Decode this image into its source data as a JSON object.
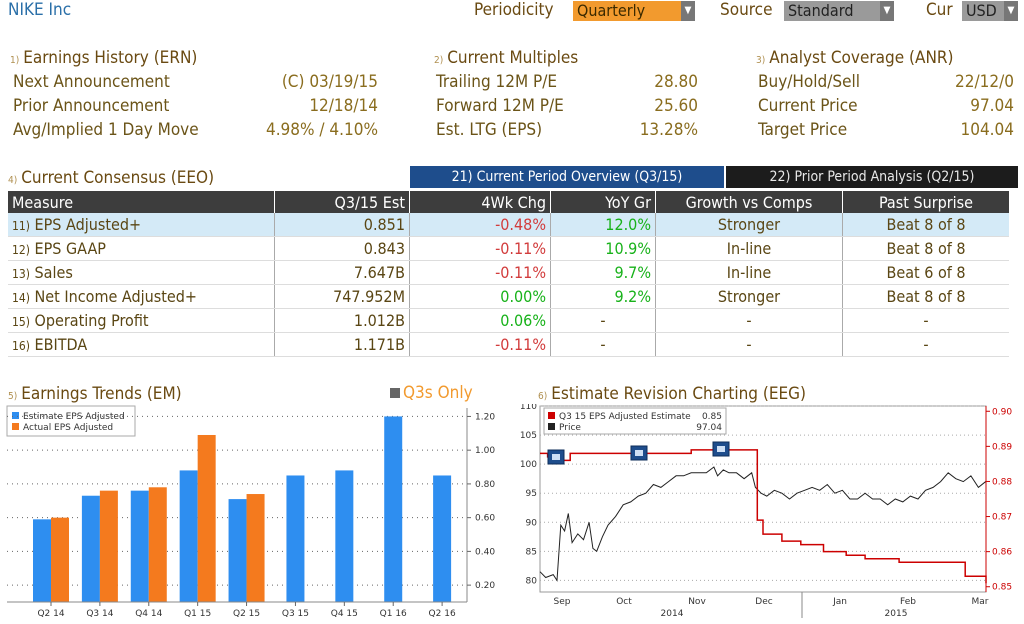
{
  "header": {
    "title": "NIKE Inc",
    "periodicity_label": "Periodicity",
    "periodicity_value": "Quarterly",
    "source_label": "Source",
    "source_value": "Standard",
    "cur_label": "Cur",
    "cur_value": "USD"
  },
  "earnings_history": {
    "num": "1)",
    "title": "Earnings History (ERN)",
    "rows": [
      {
        "label": "Next Announcement",
        "value": "(C)  03/19/15"
      },
      {
        "label": "Prior Announcement",
        "value": "12/18/14"
      },
      {
        "label": "Avg/Implied 1 Day Move",
        "value": "4.98% / 4.10%"
      }
    ]
  },
  "current_multiples": {
    "num": "2)",
    "title": "Current Multiples",
    "rows": [
      {
        "label": "Trailing 12M P/E",
        "value": "28.80"
      },
      {
        "label": "Forward 12M P/E",
        "value": "25.60"
      },
      {
        "label": "Est. LTG (EPS)",
        "value": "13.28%"
      }
    ]
  },
  "analyst_coverage": {
    "num": "3)",
    "title": "Analyst Coverage (ANR)",
    "rows": [
      {
        "label": "Buy/Hold/Sell",
        "value": "22/12/0"
      },
      {
        "label": "Current Price",
        "value": "97.04"
      },
      {
        "label": "Target Price",
        "value": "104.04"
      }
    ]
  },
  "consensus": {
    "num": "4)",
    "title": "Current Consensus (EEO)",
    "tab_current": "21) Current Period Overview (Q3/15)",
    "tab_prior": "22) Prior Period Analysis (Q2/15)",
    "columns": [
      "Measure",
      "Q3/15 Est",
      "4Wk Chg",
      "YoY Gr",
      "Growth vs Comps",
      "Past Surprise"
    ],
    "rows": [
      {
        "num": "11)",
        "measure": "EPS Adjusted+",
        "est": "0.851",
        "chg": "-0.48%",
        "yoy": "12.0%",
        "growth": "Stronger",
        "surprise": "Beat 8 of 8"
      },
      {
        "num": "12)",
        "measure": "EPS GAAP",
        "est": "0.843",
        "chg": "-0.11%",
        "yoy": "10.9%",
        "growth": "In-line",
        "surprise": "Beat 8 of 8"
      },
      {
        "num": "13)",
        "measure": "Sales",
        "est": "7.647B",
        "chg": "-0.11%",
        "yoy": "9.7%",
        "growth": "In-line",
        "surprise": "Beat 6 of 8"
      },
      {
        "num": "14)",
        "measure": "Net Income Adjusted+",
        "est": "747.952M",
        "chg": "0.00%",
        "yoy": "9.2%",
        "growth": "Stronger",
        "surprise": "Beat 8 of 8"
      },
      {
        "num": "15)",
        "measure": "Operating Profit",
        "est": "1.012B",
        "chg": "0.06%",
        "yoy": "-",
        "growth": "-",
        "surprise": "-"
      },
      {
        "num": "16)",
        "measure": "EBITDA",
        "est": "1.171B",
        "chg": "-0.11%",
        "yoy": "-",
        "growth": "-",
        "surprise": "-"
      }
    ]
  },
  "trends": {
    "num": "5)",
    "title": "Earnings Trends (EM)",
    "q3_only": "Q3s Only"
  },
  "revision": {
    "num": "6)",
    "title": "Estimate Revision Charting (EEG)"
  },
  "colors": {
    "estimate": "#2e8ef0",
    "actual": "#f47a1e",
    "estimate_line": "#cc0000",
    "price_line": "#222222",
    "tab_active": "#1e4d8c",
    "dropdown_active": "#f29a2e"
  },
  "chart_data": [
    {
      "type": "bar",
      "categories": [
        "Q2 14",
        "Q3 14",
        "Q4 14",
        "Q1 15",
        "Q2 15",
        "Q3 15",
        "Q4 15",
        "Q1 16",
        "Q2 16"
      ],
      "series": [
        {
          "name": "Estimate EPS Adjusted",
          "values": [
            0.59,
            0.73,
            0.76,
            0.88,
            0.71,
            0.85,
            0.88,
            1.2,
            0.85
          ]
        },
        {
          "name": "Actual EPS Adjusted",
          "values": [
            0.6,
            0.76,
            0.78,
            1.09,
            0.74,
            null,
            null,
            null,
            null
          ]
        }
      ],
      "ylim": [
        0.1,
        1.25
      ],
      "yticks": [
        "0.20",
        "0.40",
        "0.60",
        "0.80",
        "1.00",
        "1.20"
      ],
      "legend": "top-left"
    },
    {
      "type": "line",
      "series": [
        {
          "name": "Q3 15 EPS Adjusted Estimate",
          "last": "0.85",
          "points": [
            [
              0,
              0.888
            ],
            [
              4,
              0.887
            ],
            [
              8,
              0.886
            ],
            [
              12,
              0.886
            ],
            [
              16,
              0.888
            ],
            [
              40,
              0.888
            ],
            [
              60,
              0.888
            ],
            [
              80,
              0.889
            ],
            [
              100,
              0.889
            ],
            [
              112,
              0.889
            ],
            [
              115,
              0.869
            ],
            [
              118,
              0.865
            ],
            [
              128,
              0.863
            ],
            [
              138,
              0.862
            ],
            [
              150,
              0.86
            ],
            [
              162,
              0.859
            ],
            [
              172,
              0.858
            ],
            [
              190,
              0.857
            ],
            [
              210,
              0.857
            ],
            [
              222,
              0.857
            ],
            [
              225,
              0.853
            ],
            [
              236,
              0.851
            ]
          ]
        },
        {
          "name": "Price",
          "last": "97.04",
          "points": [
            [
              0,
              81.5
            ],
            [
              3,
              80.5
            ],
            [
              7,
              81.0
            ],
            [
              9,
              80.0
            ],
            [
              11,
              89.5
            ],
            [
              13,
              88.5
            ],
            [
              15,
              91.5
            ],
            [
              17,
              86.5
            ],
            [
              20,
              88
            ],
            [
              23,
              87
            ],
            [
              26,
              90
            ],
            [
              28,
              85.5
            ],
            [
              30,
              85
            ],
            [
              33,
              87.5
            ],
            [
              36,
              89.5
            ],
            [
              40,
              91
            ],
            [
              44,
              93
            ],
            [
              48,
              93.5
            ],
            [
              52,
              94.5
            ],
            [
              56,
              95
            ],
            [
              60,
              96.5
            ],
            [
              64,
              96
            ],
            [
              68,
              97
            ],
            [
              72,
              98
            ],
            [
              76,
              98
            ],
            [
              80,
              98.5
            ],
            [
              84,
              98.5
            ],
            [
              88,
              98.5
            ],
            [
              92,
              99.5
            ],
            [
              94,
              98
            ],
            [
              97,
              99
            ],
            [
              100,
              98.5
            ],
            [
              104,
              98.5
            ],
            [
              108,
              97.5
            ],
            [
              112,
              98.5
            ],
            [
              114,
              96
            ],
            [
              117,
              95
            ],
            [
              120,
              94.5
            ],
            [
              124,
              95.5
            ],
            [
              128,
              95
            ],
            [
              132,
              94
            ],
            [
              136,
              95
            ],
            [
              140,
              95.5
            ],
            [
              144,
              96
            ],
            [
              148,
              95.5
            ],
            [
              152,
              96.5
            ],
            [
              156,
              95
            ],
            [
              160,
              95.5
            ],
            [
              164,
              94
            ],
            [
              168,
              94
            ],
            [
              172,
              95
            ],
            [
              176,
              94
            ],
            [
              180,
              94
            ],
            [
              184,
              93
            ],
            [
              188,
              94
            ],
            [
              192,
              93.5
            ],
            [
              196,
              94.5
            ],
            [
              200,
              94
            ],
            [
              204,
              95.5
            ],
            [
              208,
              96
            ],
            [
              212,
              97
            ],
            [
              216,
              98.5
            ],
            [
              220,
              97.5
            ],
            [
              224,
              97
            ],
            [
              228,
              98
            ],
            [
              232,
              96
            ],
            [
              236,
              97.04
            ]
          ]
        }
      ],
      "x_ticks": [
        "Sep",
        "Oct",
        "Nov",
        "Dec",
        "Jan",
        "Feb",
        "Mar"
      ],
      "year_labels": [
        "2014",
        "2015"
      ],
      "y_left_ticks": [
        "80",
        "85",
        "90",
        "95",
        "100",
        "105",
        "110"
      ],
      "y_right_ticks": [
        "0.85",
        "0.86",
        "0.87",
        "0.88",
        "0.89",
        "0.90"
      ],
      "ylim_left": [
        78,
        110
      ],
      "ylim_right": [
        0.8485,
        0.9015
      ],
      "legend": "top-left"
    }
  ]
}
